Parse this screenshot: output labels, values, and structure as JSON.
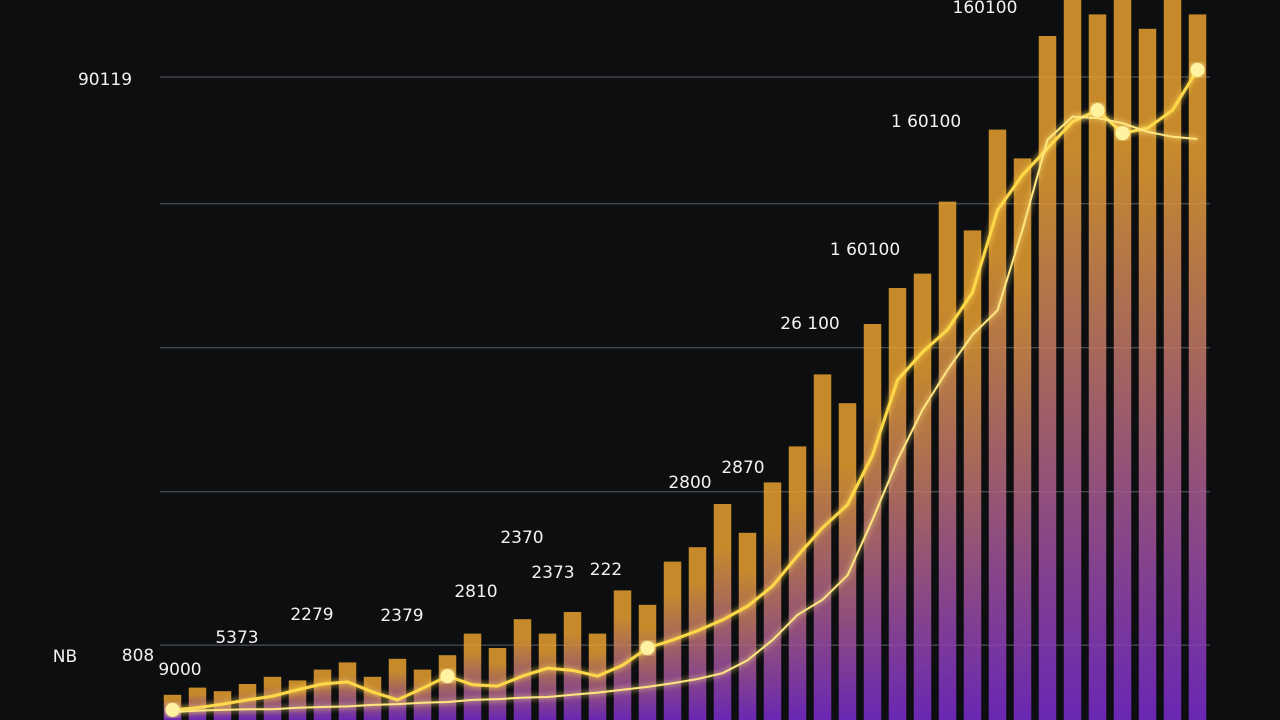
{
  "chart_data": {
    "type": "bar",
    "categories": [
      null,
      null,
      null,
      null,
      null,
      null,
      null,
      null,
      null,
      null,
      null,
      null,
      null,
      null,
      null,
      null,
      null,
      null,
      null,
      null,
      null,
      null,
      null,
      null,
      null,
      null,
      null,
      null,
      null,
      null,
      null,
      null,
      null,
      null,
      null,
      null,
      null,
      null,
      null,
      null,
      null,
      null
    ],
    "values": [
      3.5,
      4.5,
      4,
      5,
      6,
      5.5,
      7,
      8,
      6,
      8.5,
      7,
      9,
      12,
      10,
      14,
      12,
      15,
      12,
      18,
      16,
      22,
      24,
      30,
      26,
      33,
      38,
      48,
      44,
      55,
      60,
      62,
      72,
      68,
      82,
      78,
      95,
      100,
      98,
      100,
      96,
      100,
      98
    ],
    "color": [
      "#e8a030",
      "#7a2bd0"
    ],
    "lines": [
      {
        "color": "#ffd84a",
        "values": [
          1.4,
          1.7,
          2.2,
          2.8,
          3.3,
          4.2,
          5.0,
          5.3,
          3.9,
          2.8,
          4.4,
          6.1,
          4.9,
          4.7,
          6.1,
          7.2,
          6.9,
          6.1,
          7.6,
          10.0,
          11.1,
          12.4,
          13.9,
          15.8,
          18.6,
          22.8,
          26.7,
          29.9,
          36.8,
          47.2,
          51.1,
          54.2,
          59.4,
          70.8,
          75.7,
          79.4,
          83.1,
          84.7,
          81.5,
          82.2,
          84.7,
          90.3
        ]
      },
      {
        "color": "#ffe680",
        "values": [
          1.1,
          1.3,
          1.4,
          1.5,
          1.5,
          1.7,
          1.8,
          1.9,
          2.1,
          2.2,
          2.4,
          2.5,
          2.8,
          2.9,
          3.1,
          3.2,
          3.5,
          3.8,
          4.2,
          4.6,
          5.1,
          5.7,
          6.5,
          8.3,
          11.1,
          14.6,
          16.7,
          20.1,
          27.8,
          36.1,
          43.1,
          48.6,
          53.5,
          56.9,
          68.1,
          80.6,
          83.8,
          83.6,
          82.9,
          81.7,
          81.0,
          80.7
        ]
      }
    ],
    "ylim": [
      0,
      100
    ],
    "yticks": [
      10.4,
      31.7,
      51.7,
      71.7,
      89.3
    ],
    "grid": true,
    "annotations": [
      "90119",
      "160100",
      "1 60100",
      "1 60100",
      "26 100",
      "2800",
      "2870",
      "2370",
      "2373",
      "222",
      "2810",
      "2279",
      "2379",
      "5373",
      "808",
      "9000",
      "NB"
    ]
  }
}
